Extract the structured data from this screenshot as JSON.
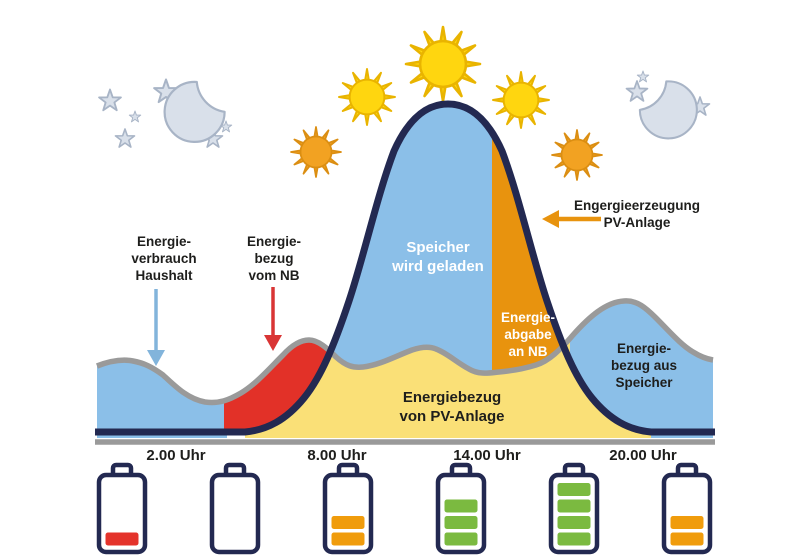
{
  "labels": {
    "household": {
      "lines": [
        "Energie-",
        "verbrauch",
        "Haushalt"
      ]
    },
    "grid_draw": {
      "lines": [
        "Energie-",
        "bezug",
        "vom NB"
      ]
    },
    "storage_charging": {
      "lines": [
        "Speicher",
        "wird geladen"
      ]
    },
    "pv_generation": {
      "lines": [
        "Engergieerzeugung",
        "PV-Anlage"
      ]
    },
    "grid_feed": {
      "lines": [
        "Energie-",
        "abgabe",
        "an NB"
      ]
    },
    "pv_draw": {
      "lines": [
        "Energiebezug",
        "von PV-Anlage"
      ]
    },
    "storage_draw": {
      "lines": [
        "Energie-",
        "bezug aus",
        "Speicher"
      ]
    }
  },
  "x_axis": {
    "ticks": [
      "2.00 Uhr",
      "8.00 Uhr",
      "14.00 Uhr",
      "20.00 Uhr"
    ]
  },
  "icons": {
    "night_left": "crescent-moon-with-stars",
    "night_right": "crescent-moon-with-stars",
    "daytime": "sun-icons",
    "bottom_row": "battery-charge-indicators"
  },
  "palette": {
    "area_blue": "#8BBFE8",
    "area_yellow": "#FAE077",
    "area_orange": "#E8930E",
    "area_red": "#E23128",
    "curve_navy": "#232951",
    "curve_gray": "#9A9A9A",
    "text_dark": "#1E1E1C",
    "sun_yellow": "#FFD60F",
    "sun_yellow_stroke": "#E9B400",
    "sun_orange": "#F2A222",
    "sun_orange_stroke": "#DB8E12",
    "moon_fill": "#D9E0EA",
    "moon_stroke": "#A8B4C6",
    "arrow_blue": "#82B4DB",
    "arrow_red": "#D93535",
    "battery_green": "#7BBA40",
    "battery_orange": "#F09C0C",
    "battery_red": "#E4332B"
  },
  "batteries": {
    "items": [
      {
        "bars": 1,
        "color": "#E4332B"
      },
      {
        "bars": 0,
        "color": "#FFFFFF"
      },
      {
        "bars": 2,
        "color": "#F09C0C"
      },
      {
        "bars": 3,
        "color": "#7BBA40"
      },
      {
        "bars": 4,
        "color": "#7BBA40"
      },
      {
        "bars": 2,
        "color": "#F09C0C"
      }
    ]
  }
}
